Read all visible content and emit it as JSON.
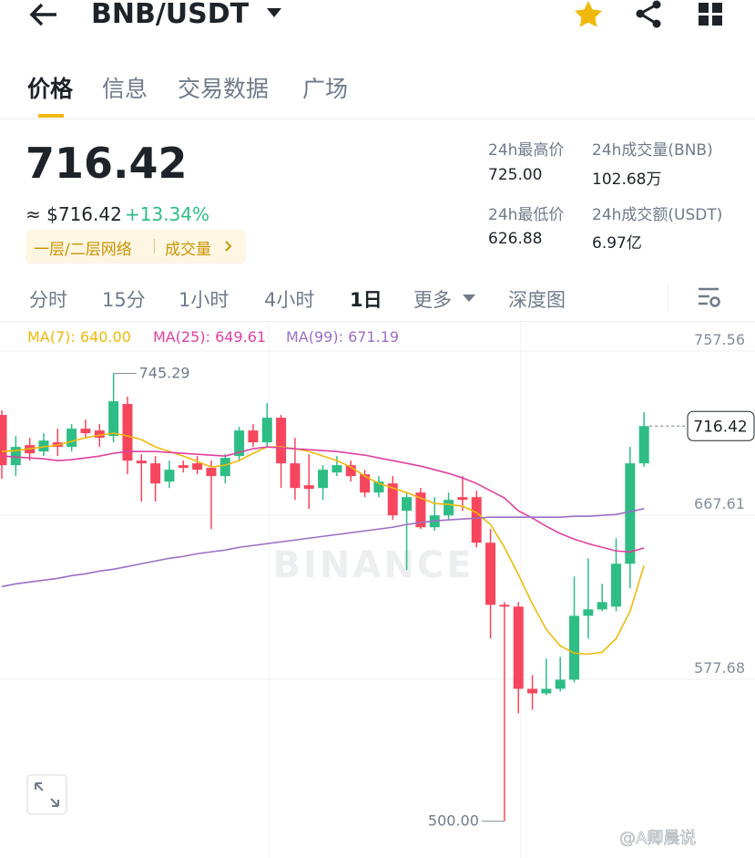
{
  "header": {
    "pair": "BNB/USDT"
  },
  "tabs": [
    "价格",
    "信息",
    "交易数据",
    "广场"
  ],
  "price": {
    "last": "716.42",
    "usd": "≈ $716.42",
    "change": "+13.34%",
    "tag": "一层/二层网络",
    "tag2": "成交量"
  },
  "stats": [
    {
      "label": "24h最高价",
      "value": "725.00"
    },
    {
      "label": "24h成交量(BNB)",
      "value": "102.68万"
    },
    {
      "label": "24h最低价",
      "value": "626.88"
    },
    {
      "label": "24h成交额(USDT)",
      "value": "6.97亿"
    }
  ],
  "intervals": [
    "分时",
    "15分",
    "1小时",
    "4小时",
    "1日",
    "更多",
    "深度图"
  ],
  "watermark": "BINANCE",
  "credit": "@A卿晨说",
  "chart_data": {
    "type": "candlestick",
    "up_color": "#2ebd85",
    "down_color": "#f6465d",
    "ylim": [
      487.8,
      772.5
    ],
    "yticks": [
      757.56,
      667.61,
      577.68
    ],
    "grid": true,
    "annotations": [
      {
        "index": 8,
        "value": 745.29,
        "label": "745.29"
      },
      {
        "index": 36,
        "value": 500,
        "label": "500.00"
      }
    ],
    "last_index": 46,
    "candles": [
      {
        "open": 722.5,
        "high": 725,
        "low": 687.5,
        "close": 695
      },
      {
        "open": 695,
        "high": 711,
        "low": 689,
        "close": 705
      },
      {
        "open": 706,
        "high": 710,
        "low": 697.5,
        "close": 701.5
      },
      {
        "open": 702.5,
        "high": 712.5,
        "low": 700,
        "close": 708.5
      },
      {
        "open": 707.5,
        "high": 715,
        "low": 700,
        "close": 705
      },
      {
        "open": 705,
        "high": 717.5,
        "low": 702.5,
        "close": 715
      },
      {
        "open": 715,
        "high": 720,
        "low": 710,
        "close": 712.5
      },
      {
        "open": 714,
        "high": 717.5,
        "low": 705,
        "close": 710
      },
      {
        "open": 711,
        "high": 745.29,
        "low": 707.5,
        "close": 730
      },
      {
        "open": 728.5,
        "high": 732.5,
        "low": 690,
        "close": 697.5
      },
      {
        "open": 697.5,
        "high": 701,
        "low": 675,
        "close": 696
      },
      {
        "open": 696,
        "high": 700,
        "low": 675,
        "close": 685
      },
      {
        "open": 686,
        "high": 697.5,
        "low": 682.5,
        "close": 692.5
      },
      {
        "open": 695,
        "high": 697.5,
        "low": 691,
        "close": 693.5
      },
      {
        "open": 696,
        "high": 700,
        "low": 690,
        "close": 692.5
      },
      {
        "open": 693.5,
        "high": 697.5,
        "low": 660,
        "close": 689
      },
      {
        "open": 689,
        "high": 701,
        "low": 685,
        "close": 699
      },
      {
        "open": 700,
        "high": 716,
        "low": 697.5,
        "close": 714
      },
      {
        "open": 714,
        "high": 717.5,
        "low": 705,
        "close": 707.5
      },
      {
        "open": 707.5,
        "high": 729,
        "low": 705,
        "close": 721
      },
      {
        "open": 721,
        "high": 722.5,
        "low": 682.5,
        "close": 696
      },
      {
        "open": 696,
        "high": 710,
        "low": 676,
        "close": 682.5
      },
      {
        "open": 684,
        "high": 701,
        "low": 671,
        "close": 682
      },
      {
        "open": 682.5,
        "high": 695,
        "low": 676,
        "close": 692.5
      },
      {
        "open": 691,
        "high": 700,
        "low": 689,
        "close": 695
      },
      {
        "open": 695,
        "high": 697.5,
        "low": 686,
        "close": 689
      },
      {
        "open": 690,
        "high": 692.5,
        "low": 677.5,
        "close": 680
      },
      {
        "open": 680,
        "high": 689,
        "low": 677.5,
        "close": 686
      },
      {
        "open": 685,
        "high": 689,
        "low": 665,
        "close": 667.5
      },
      {
        "open": 670,
        "high": 680,
        "low": 637.5,
        "close": 677.5
      },
      {
        "open": 680,
        "high": 682.5,
        "low": 660,
        "close": 661
      },
      {
        "open": 661,
        "high": 677.5,
        "low": 659,
        "close": 667.5
      },
      {
        "open": 667.5,
        "high": 680,
        "low": 665,
        "close": 676
      },
      {
        "open": 677.5,
        "high": 689,
        "low": 670,
        "close": 676
      },
      {
        "open": 677.5,
        "high": 681,
        "low": 650,
        "close": 652.5
      },
      {
        "open": 652.5,
        "high": 660,
        "low": 600,
        "close": 618.5
      },
      {
        "open": 618.5,
        "high": 620,
        "low": 500,
        "close": 617.5
      },
      {
        "open": 617.5,
        "high": 620,
        "low": 559,
        "close": 572.5
      },
      {
        "open": 572.5,
        "high": 580,
        "low": 561,
        "close": 570
      },
      {
        "open": 570,
        "high": 589,
        "low": 569,
        "close": 572.5
      },
      {
        "open": 572.5,
        "high": 590,
        "low": 571,
        "close": 577.5
      },
      {
        "open": 577.5,
        "high": 634,
        "low": 576,
        "close": 612.5
      },
      {
        "open": 612.5,
        "high": 644,
        "low": 600,
        "close": 616
      },
      {
        "open": 616,
        "high": 630,
        "low": 615,
        "close": 620
      },
      {
        "open": 617.5,
        "high": 655,
        "low": 615,
        "close": 641
      },
      {
        "open": 641,
        "high": 705,
        "low": 627.5,
        "close": 696
      },
      {
        "open": 696,
        "high": 724,
        "low": 694,
        "close": 716.42
      }
    ],
    "series": [
      {
        "name": "MA(7): 640.00",
        "color": "#f0b90b",
        "values": [
          702.5,
          703,
          704,
          705,
          706,
          708,
          710,
          711.5,
          712.5,
          711,
          709,
          705,
          702.5,
          700,
          697,
          694,
          695,
          697.5,
          701.5,
          705,
          705,
          704,
          702.5,
          700,
          697.5,
          694,
          689,
          685,
          682.5,
          680,
          677,
          674,
          673.5,
          672.5,
          669,
          662.5,
          650,
          635,
          619,
          605,
          596,
          592,
          591.5,
          592.5,
          600,
          615,
          640
        ]
      },
      {
        "name": "MA(25): 649.61",
        "color": "#e040a0",
        "values": [
          700,
          699.5,
          699,
          698.5,
          697.5,
          698,
          699,
          700,
          701.5,
          702.5,
          702.5,
          702.5,
          702,
          701.5,
          701,
          700.5,
          700,
          702,
          704,
          705,
          704.5,
          704,
          703.5,
          703,
          702.5,
          701.5,
          700.5,
          699,
          697.5,
          696,
          694.5,
          692.5,
          690.5,
          688,
          685,
          681,
          677,
          670,
          666,
          661.5,
          657.5,
          654.5,
          652,
          650,
          648,
          647.5,
          649.61
        ]
      },
      {
        "name": "MA(99): 671.19",
        "color": "#9b6fc4",
        "values": [
          628.5,
          630,
          631,
          632,
          633,
          634.5,
          635.5,
          637,
          638,
          639.5,
          641,
          642.5,
          644,
          645,
          646.5,
          647.5,
          648.5,
          650,
          651,
          652,
          653,
          654,
          655,
          656,
          657,
          658,
          659,
          660,
          661,
          662.5,
          663.5,
          664.5,
          665,
          665.5,
          666,
          666.5,
          666.5,
          666.5,
          666.5,
          666.5,
          666.5,
          667,
          667,
          667.5,
          668,
          669.5,
          671.19
        ]
      }
    ]
  }
}
